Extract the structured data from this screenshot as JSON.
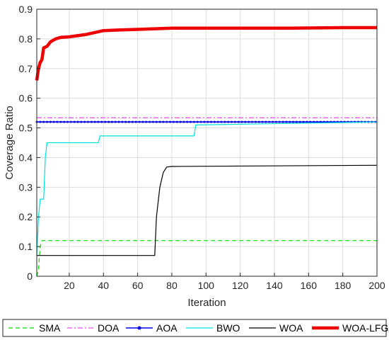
{
  "chart_data": {
    "type": "line",
    "xlabel": "Iteration",
    "ylabel": "Coverage Ratio",
    "xlim": [
      1,
      200
    ],
    "ylim": [
      0,
      0.9
    ],
    "xticks": [
      20,
      40,
      60,
      80,
      100,
      120,
      140,
      160,
      180,
      200
    ],
    "yticks": [
      0,
      0.1,
      0.2,
      0.3,
      0.4,
      0.5,
      0.6,
      0.7,
      0.8,
      0.9
    ],
    "grid": true,
    "legend_position": "bottom",
    "series": [
      {
        "name": "SMA",
        "color": "#00dd00",
        "style": "dashed",
        "points": [
          [
            1,
            0.0
          ],
          [
            2,
            0.02
          ],
          [
            3,
            0.1
          ],
          [
            4,
            0.12
          ],
          [
            200,
            0.12
          ]
        ]
      },
      {
        "name": "DOA",
        "color": "#e020e0",
        "style": "dashdot",
        "points": [
          [
            1,
            0.534
          ],
          [
            200,
            0.534
          ]
        ]
      },
      {
        "name": "AOA",
        "color": "#0000ee",
        "style": "solid-dot",
        "points": [
          [
            1,
            0.52
          ],
          [
            200,
            0.52
          ]
        ]
      },
      {
        "name": "BWO",
        "color": "#00e0e0",
        "style": "solid",
        "points": [
          [
            1,
            0.07
          ],
          [
            2,
            0.2
          ],
          [
            3,
            0.26
          ],
          [
            5,
            0.26
          ],
          [
            6,
            0.4
          ],
          [
            7,
            0.45
          ],
          [
            37,
            0.45
          ],
          [
            38,
            0.473
          ],
          [
            93,
            0.473
          ],
          [
            94,
            0.51
          ],
          [
            200,
            0.52
          ]
        ]
      },
      {
        "name": "WOA",
        "color": "#000000",
        "style": "solid",
        "points": [
          [
            1,
            0.07
          ],
          [
            70,
            0.07
          ],
          [
            71,
            0.2
          ],
          [
            73,
            0.3
          ],
          [
            75,
            0.35
          ],
          [
            77,
            0.368
          ],
          [
            80,
            0.37
          ],
          [
            200,
            0.374
          ]
        ]
      },
      {
        "name": "WOA-LFGA",
        "color": "#ee0000",
        "style": "bold",
        "points": [
          [
            1,
            0.66
          ],
          [
            2,
            0.7
          ],
          [
            3,
            0.72
          ],
          [
            4,
            0.73
          ],
          [
            5,
            0.77
          ],
          [
            7,
            0.775
          ],
          [
            9,
            0.79
          ],
          [
            12,
            0.8
          ],
          [
            15,
            0.805
          ],
          [
            20,
            0.807
          ],
          [
            30,
            0.815
          ],
          [
            40,
            0.828
          ],
          [
            50,
            0.83
          ],
          [
            60,
            0.832
          ],
          [
            70,
            0.834
          ],
          [
            80,
            0.836
          ],
          [
            100,
            0.836
          ],
          [
            150,
            0.836
          ],
          [
            180,
            0.838
          ],
          [
            200,
            0.838
          ]
        ]
      }
    ]
  }
}
